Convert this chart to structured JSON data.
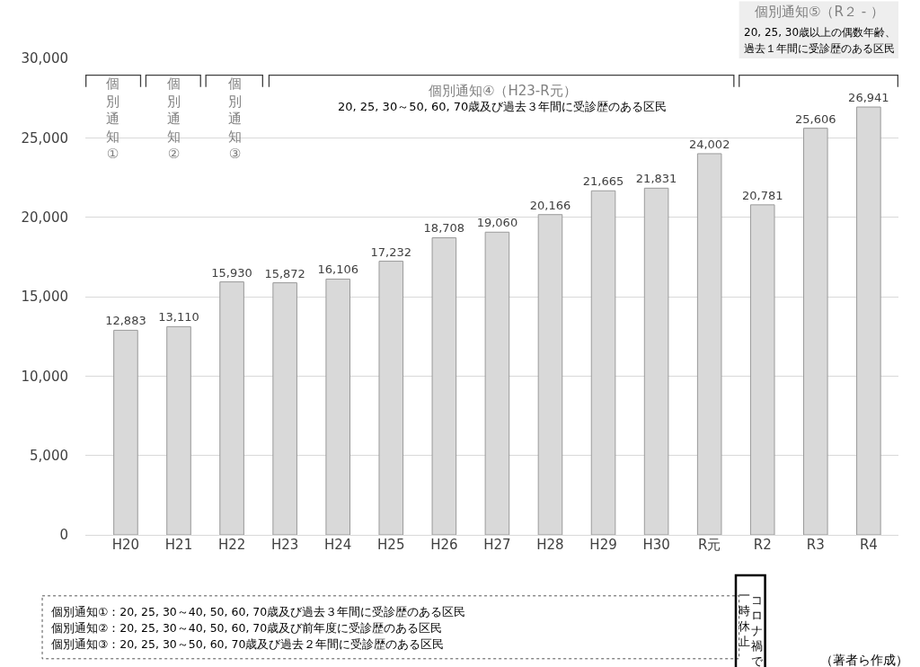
{
  "chart_data": {
    "type": "bar",
    "categories": [
      "H20",
      "H21",
      "H22",
      "H23",
      "H24",
      "H25",
      "H26",
      "H27",
      "H28",
      "H29",
      "H30",
      "R元",
      "R2",
      "R3",
      "R4"
    ],
    "values": [
      12883,
      13110,
      15930,
      15872,
      16106,
      17232,
      18708,
      19060,
      20166,
      21665,
      21831,
      24002,
      20781,
      25606,
      26941
    ],
    "color": "#d9d9d9",
    "grid": "y",
    "value_labels": [
      "12,883",
      "13,110",
      "15,930",
      "15,872",
      "16,106",
      "17,232",
      "18,708",
      "19,060",
      "20,166",
      "21,665",
      "21,831",
      "24,002",
      "20,781",
      "25,606",
      "26,941"
    ],
    "ylim": [
      0,
      30000
    ],
    "yticks": [
      {
        "value": 0,
        "label": "0"
      },
      {
        "value": 5000,
        "label": "5,000"
      },
      {
        "value": 10000,
        "label": "10,000"
      },
      {
        "value": 15000,
        "label": "15,000"
      },
      {
        "value": 20000,
        "label": "20,000"
      },
      {
        "value": 25000,
        "label": "25,000"
      },
      {
        "value": 30000,
        "label": "30,000"
      }
    ],
    "annotations": [
      "個別通知①",
      "個別通知②",
      "個別通知③",
      "個別通知④（H23-R元）",
      "20, 25, 30～50, 60, 70歳及び過去３年間に受診歴のある区民",
      "個別通知⑤（R２ - ）",
      "20, 25, 30歳以上の偶数年齢、",
      "過去１年間に受診歴のある区民",
      "個別通知①：20, 25, 30～40, 50, 60, 70歳及び過去３年間に受診歴のある区民",
      "個別通知②：20, 25, 30～40, 50, 60, 70歳及び前年度に受診歴のある区民",
      "個別通知③：20, 25, 30～50, 60, 70歳及び過去２年間に受診歴のある区民",
      "コロナ禍で",
      "一時休止",
      "（著者ら作成）"
    ]
  }
}
